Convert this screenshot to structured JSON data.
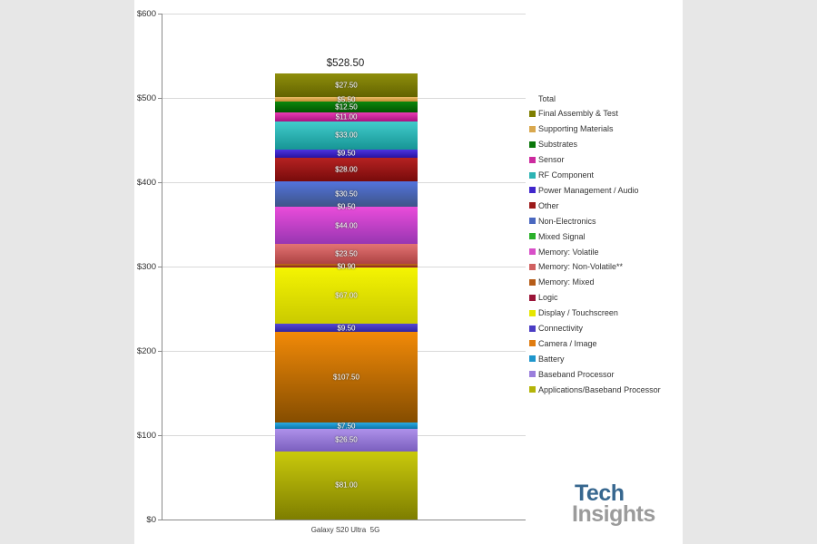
{
  "colors": {
    "canvas_bg": "#e7e7e7",
    "panel_bg": "#ffffff",
    "grid": "#d9d9d9",
    "axis": "#8a8a8a",
    "tick_text": "#2e2e2e",
    "seg_text": "#ffffff",
    "total_text": "#1b1b1b",
    "legend_text": "#333333",
    "category_text": "#3a3a3a",
    "logo_tech": "#37678f",
    "logo_insights": "#9b9b9b"
  },
  "chart_data": {
    "type": "bar",
    "stacked": true,
    "title": "",
    "xlabel": "",
    "ylabel": "",
    "category": "Galaxy S20 Ultra  5G",
    "total": {
      "value": 528.5,
      "label": "$528.50"
    },
    "ylim": [
      0,
      600
    ],
    "grid": true,
    "legend_position": "right",
    "legend_title": "Total",
    "yticks": [
      {
        "value": 0,
        "label": "$0"
      },
      {
        "value": 100,
        "label": "$100"
      },
      {
        "value": 200,
        "label": "$200"
      },
      {
        "value": 300,
        "label": "$300"
      },
      {
        "value": 400,
        "label": "$400"
      },
      {
        "value": 500,
        "label": "$500"
      },
      {
        "value": 600,
        "label": "$600"
      }
    ],
    "series": [
      {
        "name": "Final Assembly & Test",
        "value": 27.5,
        "label": "$27.50",
        "show_label": true,
        "c1": "#8f8f0c",
        "c2": "#636300",
        "swatch": "#7e7e00"
      },
      {
        "name": "Supporting Materials",
        "value": 5.5,
        "label": "$5.50",
        "show_label": true,
        "c1": "#ecbc66",
        "c2": "#c48f34",
        "swatch": "#d9a84e"
      },
      {
        "name": "Substrates",
        "value": 12.5,
        "label": "$12.50",
        "show_label": true,
        "c1": "#0d870d",
        "c2": "#015601",
        "swatch": "#0a770a"
      },
      {
        "name": "Sensor",
        "value": 11.0,
        "label": "$11.00",
        "show_label": true,
        "c1": "#ea3cb4",
        "c2": "#a91280",
        "swatch": "#cc2a9e"
      },
      {
        "name": "RF Component",
        "value": 33.0,
        "label": "$33.00",
        "show_label": true,
        "c1": "#41cbcb",
        "c2": "#179595",
        "swatch": "#2db3b3"
      },
      {
        "name": "Power Management / Audio",
        "value": 9.5,
        "label": "$9.50",
        "show_label": true,
        "c1": "#4c34e0",
        "c2": "#2813a2",
        "swatch": "#4127cc"
      },
      {
        "name": "Other",
        "value": 28.0,
        "label": "$28.00",
        "show_label": true,
        "c1": "#b52222",
        "c2": "#780b0b",
        "swatch": "#9c1a1a"
      },
      {
        "name": "Non-Electronics",
        "value": 30.5,
        "label": "$30.50",
        "show_label": true,
        "c1": "#5374dd",
        "c2": "#3e5488",
        "swatch": "#4a68c0"
      },
      {
        "name": "Mixed Signal",
        "value": 0.5,
        "label": "$0.50",
        "show_label": true,
        "c1": "#2cc22c",
        "c2": "#188818",
        "swatch": "#2ab02a"
      },
      {
        "name": "Memory: Volatile",
        "value": 44.0,
        "label": "$44.00",
        "show_label": true,
        "c1": "#ea4cda",
        "c2": "#9836b2",
        "swatch": "#d84fc8"
      },
      {
        "name": "Memory: Non-Volatile**",
        "value": 23.5,
        "label": "$23.50",
        "show_label": true,
        "c1": "#e37373",
        "c2": "#ad4343",
        "swatch": "#d06060"
      },
      {
        "name": "Memory: Mixed",
        "value": 3.1,
        "label": "$3.10",
        "show_label": false,
        "c1": "#c5681b",
        "c2": "#8c430f",
        "swatch": "#b55c18"
      },
      {
        "name": "Logic",
        "value": 0.9,
        "label": "$0.90",
        "show_label": true,
        "c1": "#aa1742",
        "c2": "#770d2d",
        "swatch": "#9a1438"
      },
      {
        "name": "Display / Touchscreen",
        "value": 67.0,
        "label": "$67.00",
        "show_label": true,
        "c1": "#f4f402",
        "c2": "#caca00",
        "swatch": "#e6e600"
      },
      {
        "name": "Connectivity",
        "value": 9.5,
        "label": "$9.50",
        "show_label": true,
        "c1": "#5448d6",
        "c2": "#30259e",
        "swatch": "#4a3cc4"
      },
      {
        "name": "Camera / Image",
        "value": 107.5,
        "label": "$107.50",
        "show_label": true,
        "c1": "#f28a08",
        "c2": "#854d00",
        "swatch": "#e07c10"
      },
      {
        "name": "Battery",
        "value": 7.5,
        "label": "$7.50",
        "show_label": true,
        "c1": "#2baae2",
        "c2": "#0b76ac",
        "swatch": "#1e96cc"
      },
      {
        "name": "Baseband Processor",
        "value": 26.5,
        "label": "$26.50",
        "show_label": true,
        "c1": "#ae91ea",
        "c2": "#7b5fbe",
        "swatch": "#9a7edc"
      },
      {
        "name": "Applications/Baseband Processor",
        "value": 81.0,
        "label": "$81.00",
        "show_label": true,
        "c1": "#caca0c",
        "c2": "#7e7e00",
        "swatch": "#b4b408"
      }
    ]
  },
  "logo": {
    "line1": "Tech",
    "line2": "Insights"
  }
}
